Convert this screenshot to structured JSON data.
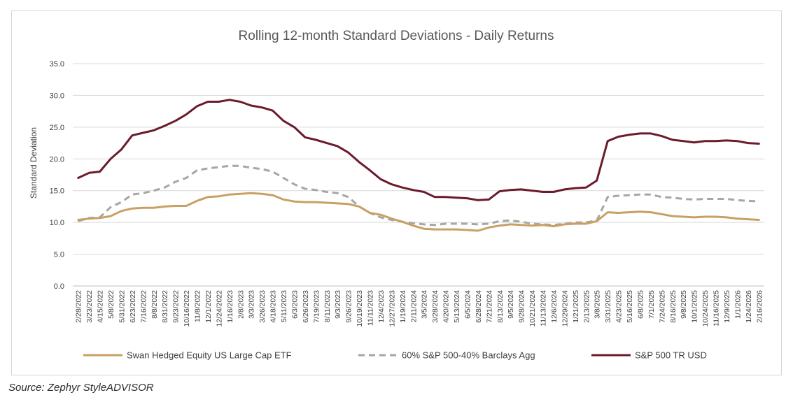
{
  "chart_data": {
    "type": "line",
    "title": "Rolling 12-month Standard Deviations - Daily Returns",
    "xlabel": "",
    "ylabel": "Standard Deviation",
    "ylim": [
      0,
      35
    ],
    "y_ticks": [
      "0.0",
      "5.0",
      "10.0",
      "15.0",
      "20.0",
      "25.0",
      "30.0",
      "35.0"
    ],
    "grid": "horizontal",
    "legend_position": "bottom",
    "categories": [
      "2/28/2022",
      "3/23/2022",
      "4/15/2022",
      "5/8/2022",
      "5/31/2022",
      "6/23/2022",
      "7/16/2022",
      "8/8/2022",
      "8/31/2022",
      "9/23/2022",
      "10/16/2022",
      "11/8/2022",
      "12/1/2022",
      "12/24/2022",
      "1/16/2023",
      "2/8/2023",
      "3/3/2023",
      "3/26/2023",
      "4/18/2023",
      "5/11/2023",
      "6/3/2023",
      "6/26/2023",
      "7/19/2023",
      "8/11/2023",
      "9/3/2023",
      "9/26/2023",
      "10/19/2023",
      "11/11/2023",
      "12/4/2023",
      "12/27/2023",
      "1/19/2024",
      "2/11/2024",
      "3/5/2024",
      "3/28/2024",
      "4/20/2024",
      "5/13/2024",
      "6/5/2024",
      "6/28/2024",
      "7/21/2024",
      "8/13/2024",
      "9/5/2024",
      "9/28/2024",
      "10/21/2024",
      "11/13/2024",
      "12/6/2024",
      "12/29/2024",
      "1/21/2025",
      "2/13/2025",
      "3/8/2025",
      "3/31/2025",
      "4/23/2025",
      "5/16/2025",
      "6/8/2025",
      "7/1/2025",
      "7/24/2025",
      "8/16/2025",
      "9/8/2025",
      "10/1/2025",
      "10/24/2025",
      "11/16/2025",
      "12/9/2025",
      "1/1/2026",
      "1/24/2026",
      "2/16/2026"
    ],
    "series": [
      {
        "name": "Swan Hedged Equity US Large Cap ETF",
        "color": "#c9a064",
        "dash": "solid",
        "values": [
          10.4,
          10.6,
          10.7,
          11.0,
          11.8,
          12.2,
          12.3,
          12.3,
          12.5,
          12.6,
          12.6,
          13.4,
          14.0,
          14.1,
          14.4,
          14.5,
          14.6,
          14.5,
          14.3,
          13.6,
          13.3,
          13.2,
          13.2,
          13.1,
          13.0,
          12.9,
          12.5,
          11.5,
          11.2,
          10.6,
          10.1,
          9.5,
          9.0,
          8.9,
          8.9,
          8.9,
          8.8,
          8.7,
          9.2,
          9.5,
          9.7,
          9.6,
          9.5,
          9.6,
          9.4,
          9.7,
          9.8,
          9.8,
          10.2,
          11.6,
          11.5,
          11.6,
          11.7,
          11.6,
          11.3,
          11.0,
          10.9,
          10.8,
          10.9,
          10.9,
          10.8,
          10.6,
          10.5,
          10.4
        ]
      },
      {
        "name": "60% S&P 500-40% Barclays Agg",
        "color": "#a6a6a6",
        "dash": "dashed",
        "values": [
          10.2,
          10.7,
          10.8,
          12.4,
          13.2,
          14.4,
          14.6,
          15.0,
          15.5,
          16.4,
          17.0,
          18.2,
          18.5,
          18.7,
          18.9,
          18.9,
          18.6,
          18.4,
          18.0,
          17.0,
          16.0,
          15.3,
          15.1,
          14.8,
          14.6,
          14.0,
          12.5,
          11.5,
          10.8,
          10.4,
          10.1,
          9.9,
          9.7,
          9.6,
          9.8,
          9.8,
          9.8,
          9.7,
          9.8,
          10.2,
          10.3,
          10.1,
          9.8,
          9.7,
          9.6,
          9.8,
          10.0,
          10.0,
          10.3,
          14.0,
          14.2,
          14.3,
          14.4,
          14.4,
          14.0,
          13.9,
          13.7,
          13.6,
          13.7,
          13.7,
          13.7,
          13.5,
          13.4,
          13.3
        ]
      },
      {
        "name": "S&P 500 TR USD",
        "color": "#6b1b2b",
        "dash": "solid",
        "values": [
          17.0,
          17.8,
          18.0,
          20.0,
          21.5,
          23.7,
          24.1,
          24.5,
          25.2,
          26.0,
          27.0,
          28.3,
          29.0,
          29.0,
          29.3,
          29.0,
          28.4,
          28.1,
          27.6,
          26.0,
          25.0,
          23.4,
          23.0,
          22.5,
          22.0,
          21.0,
          19.5,
          18.2,
          16.8,
          16.0,
          15.5,
          15.1,
          14.8,
          14.0,
          14.0,
          13.9,
          13.8,
          13.5,
          13.6,
          14.9,
          15.1,
          15.2,
          15.0,
          14.8,
          14.8,
          15.2,
          15.4,
          15.5,
          16.6,
          22.8,
          23.5,
          23.8,
          24.0,
          24.0,
          23.6,
          23.0,
          22.8,
          22.6,
          22.8,
          22.8,
          22.9,
          22.8,
          22.5,
          22.4
        ]
      }
    ]
  },
  "source_note": "Source: Zephyr StyleADVISOR"
}
